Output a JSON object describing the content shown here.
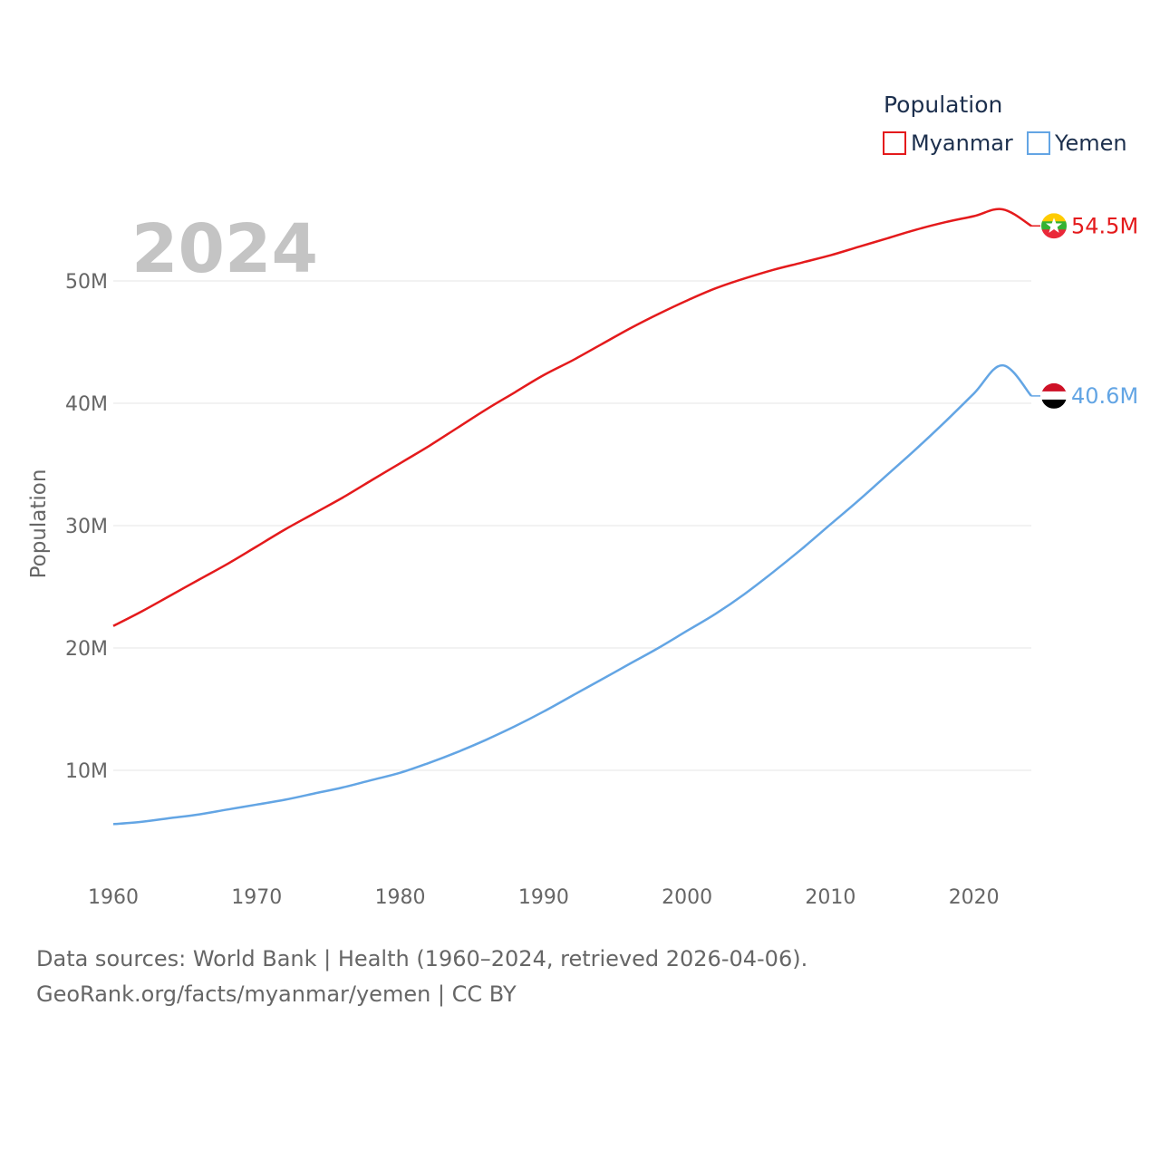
{
  "chart_data": {
    "type": "line",
    "year_label": "2024",
    "ylabel": "Population",
    "xlabel": "",
    "xlim": [
      1960,
      2024
    ],
    "ylim": [
      0,
      60000000
    ],
    "x_ticks": [
      1960,
      1970,
      1980,
      1990,
      2000,
      2010,
      2020
    ],
    "y_ticks": [
      {
        "value": 10000000,
        "label": "10M"
      },
      {
        "value": 20000000,
        "label": "20M"
      },
      {
        "value": 30000000,
        "label": "30M"
      },
      {
        "value": 40000000,
        "label": "40M"
      },
      {
        "value": 50000000,
        "label": "50M"
      }
    ],
    "legend": {
      "title": "Population",
      "position": "top-right"
    },
    "x": [
      1960,
      1962,
      1964,
      1966,
      1968,
      1970,
      1972,
      1974,
      1976,
      1978,
      1980,
      1982,
      1984,
      1986,
      1988,
      1990,
      1992,
      1994,
      1996,
      1998,
      2000,
      2002,
      2004,
      2006,
      2008,
      2010,
      2012,
      2014,
      2016,
      2018,
      2020,
      2022,
      2024
    ],
    "series": [
      {
        "name": "Myanmar",
        "color": "#e41a1c",
        "end_label": "54.5M",
        "flag": "myanmar-flag",
        "values": [
          21800000,
          23000000,
          24300000,
          25600000,
          26900000,
          28300000,
          29700000,
          31000000,
          32300000,
          33700000,
          35100000,
          36500000,
          38000000,
          39500000,
          40900000,
          42300000,
          43500000,
          44800000,
          46100000,
          47300000,
          48400000,
          49400000,
          50200000,
          50900000,
          51500000,
          52100000,
          52800000,
          53500000,
          54200000,
          54800000,
          55300000,
          55850000,
          54500000
        ]
      },
      {
        "name": "Yemen",
        "color": "#63a5e4",
        "end_label": "40.6M",
        "flag": "yemen-flag",
        "values": [
          5600000,
          5800000,
          6100000,
          6400000,
          6800000,
          7200000,
          7600000,
          8100000,
          8600000,
          9200000,
          9800000,
          10600000,
          11500000,
          12500000,
          13600000,
          14800000,
          16100000,
          17400000,
          18700000,
          20000000,
          21400000,
          22800000,
          24400000,
          26200000,
          28100000,
          30100000,
          32100000,
          34200000,
          36300000,
          38500000,
          40800000,
          43100000,
          40600000
        ]
      }
    ]
  },
  "footer": {
    "line1": "Data sources: World Bank | Health (1960–2024, retrieved 2026-04-06).",
    "line2": "GeoRank.org/facts/myanmar/yemen | CC BY"
  }
}
